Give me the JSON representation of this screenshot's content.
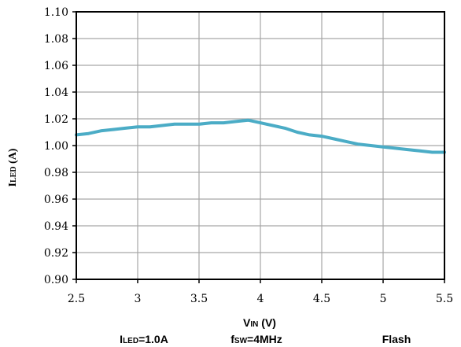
{
  "chart_data": {
    "type": "line",
    "xlabel_main": "V",
    "xlabel_sub": "IN",
    "xlabel_unit": " (V)",
    "ylabel_main": "I",
    "ylabel_sub": "LED",
    "ylabel_unit": " (A)",
    "xlim": [
      2.5,
      5.5
    ],
    "ylim": [
      0.9,
      1.1
    ],
    "xticks": [
      2.5,
      3,
      3.5,
      4,
      4.5,
      5,
      5.5
    ],
    "xtick_labels": [
      "2.5",
      "3",
      "3.5",
      "4",
      "4.5",
      "5",
      "5.5"
    ],
    "yticks": [
      0.9,
      0.92,
      0.94,
      0.96,
      0.98,
      1.0,
      1.02,
      1.04,
      1.06,
      1.08,
      1.1
    ],
    "ytick_labels": [
      "0.90",
      "0.92",
      "0.94",
      "0.96",
      "0.98",
      "1.00",
      "1.02",
      "1.04",
      "1.06",
      "1.08",
      "1.10"
    ],
    "grid": true,
    "line_color": "#4bacc6",
    "series": [
      {
        "x": [
          2.5,
          2.6,
          2.7,
          2.8,
          2.9,
          3.0,
          3.1,
          3.2,
          3.3,
          3.4,
          3.5,
          3.6,
          3.7,
          3.8,
          3.9,
          4.0,
          4.1,
          4.2,
          4.3,
          4.4,
          4.5,
          4.6,
          4.7,
          4.8,
          4.9,
          5.0,
          5.1,
          5.2,
          5.3,
          5.4,
          5.5
        ],
        "y": [
          1.008,
          1.009,
          1.011,
          1.012,
          1.013,
          1.014,
          1.014,
          1.015,
          1.016,
          1.016,
          1.016,
          1.017,
          1.017,
          1.018,
          1.019,
          1.017,
          1.015,
          1.013,
          1.01,
          1.008,
          1.007,
          1.005,
          1.003,
          1.001,
          1.0,
          0.999,
          0.998,
          0.997,
          0.996,
          0.995,
          0.995
        ]
      }
    ]
  },
  "annotations": {
    "iled_main": "I",
    "iled_sub": "LED",
    "iled_value": "=1.0A",
    "fsw_main": "f",
    "fsw_sub": "SW",
    "fsw_value": "=4MHz",
    "mode": "Flash"
  }
}
